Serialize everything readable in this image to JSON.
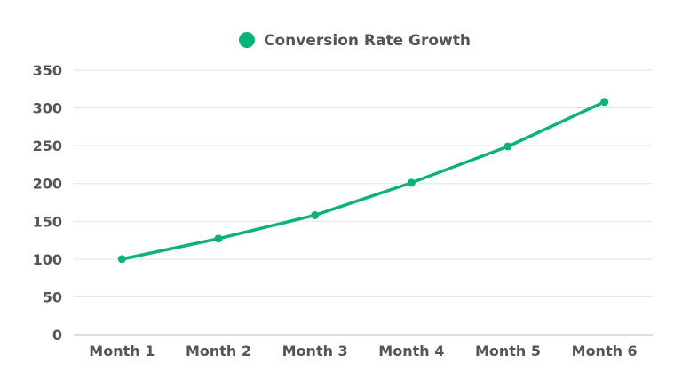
{
  "chart_data": {
    "type": "line",
    "categories": [
      "Month 1",
      "Month 2",
      "Month 3",
      "Month 4",
      "Month 5",
      "Month 6"
    ],
    "series": [
      {
        "name": "Conversion Rate Growth",
        "values": [
          100,
          127,
          158,
          201,
          249,
          308
        ],
        "color": "#0db27a"
      }
    ],
    "ylim": [
      0,
      350
    ],
    "yticks": [
      0,
      50,
      100,
      150,
      200,
      250,
      300,
      350
    ],
    "grid": true,
    "legend": "top-center"
  }
}
